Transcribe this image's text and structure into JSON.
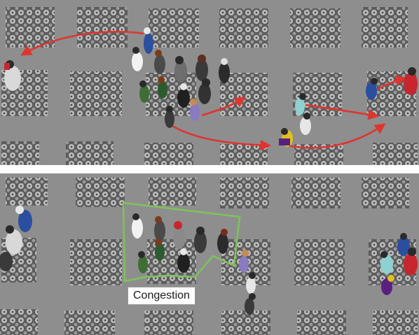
{
  "panels": [
    {
      "id": "top",
      "description_tag": "crowd-with-trajectories"
    },
    {
      "id": "bottom",
      "description_tag": "crowd-congestion"
    }
  ],
  "annotation": {
    "label": "Congestion",
    "outline_color": "#7ec35a"
  },
  "colors": {
    "floor": "#8e8e8e",
    "tile_dark": "#5a5a5a",
    "tile_light": "#b9b9b9",
    "arrow": "#e0342f",
    "separator": "#ffffff"
  }
}
